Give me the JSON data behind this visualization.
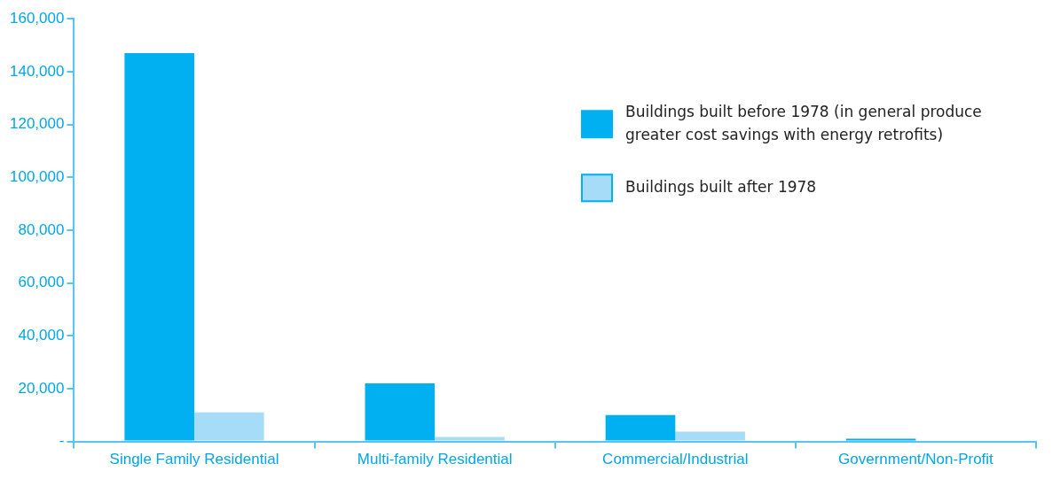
{
  "chart_data": {
    "type": "bar",
    "categories": [
      "Single Family Residential",
      "Multi-family Residential",
      "Commercial/Industrial",
      "Government/Non-Profit"
    ],
    "series": [
      {
        "name": "Buildings built before 1978 (in general produce greater cost savings with energy retrofits)",
        "color": "#00b0f0",
        "values": [
          147000,
          22000,
          10000,
          1000
        ]
      },
      {
        "name": "Buildings built after 1978",
        "color": "#a6dcf8",
        "values": [
          11000,
          1700,
          3700,
          0
        ]
      }
    ],
    "ylim": [
      0,
      160000
    ],
    "yticks": [
      {
        "value": 0,
        "label": "-"
      },
      {
        "value": 20000,
        "label": "20,000"
      },
      {
        "value": 40000,
        "label": "40,000"
      },
      {
        "value": 60000,
        "label": "60,000"
      },
      {
        "value": 80000,
        "label": "80,000"
      },
      {
        "value": 100000,
        "label": "100,000"
      },
      {
        "value": 120000,
        "label": "120,000"
      },
      {
        "value": 140000,
        "label": "140,000"
      },
      {
        "value": 160000,
        "label": "160,000"
      }
    ],
    "grid": false,
    "legend": "top right"
  }
}
